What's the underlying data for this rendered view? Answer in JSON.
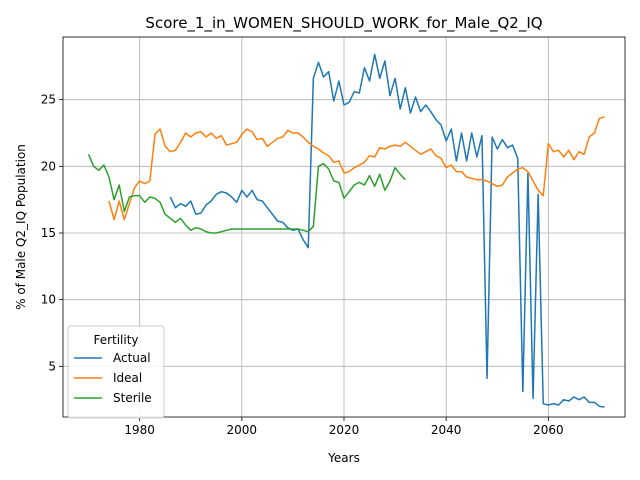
{
  "chart_data": {
    "type": "line",
    "title": "Score_1_in_WOMEN_SHOULD_WORK_for_Male_Q2_IQ",
    "xlabel": "Years",
    "ylabel": "% of Male Q2_IQ Population",
    "xlim": [
      1965,
      2075
    ],
    "ylim": [
      1.2,
      29.7
    ],
    "xticks": [
      1980,
      2000,
      2020,
      2040,
      2060
    ],
    "yticks": [
      5,
      10,
      15,
      20,
      25
    ],
    "grid": true,
    "legend": {
      "title": "Fertility",
      "location": "lower-left"
    },
    "series": [
      {
        "name": "Actual",
        "color": "#1f77b4",
        "points": [
          [
            1986,
            17.7
          ],
          [
            1987,
            16.9
          ],
          [
            1988,
            17.2
          ],
          [
            1989,
            17.0
          ],
          [
            1990,
            17.4
          ],
          [
            1991,
            16.4
          ],
          [
            1992,
            16.5
          ],
          [
            1993,
            17.1
          ],
          [
            1994,
            17.4
          ],
          [
            1995,
            17.9
          ],
          [
            1996,
            18.1
          ],
          [
            1997,
            18.0
          ],
          [
            1998,
            17.7
          ],
          [
            1999,
            17.3
          ],
          [
            2000,
            18.2
          ],
          [
            2001,
            17.7
          ],
          [
            2002,
            18.2
          ],
          [
            2003,
            17.5
          ],
          [
            2004,
            17.4
          ],
          [
            2005,
            16.9
          ],
          [
            2006,
            16.4
          ],
          [
            2007,
            15.9
          ],
          [
            2008,
            15.8
          ],
          [
            2009,
            15.4
          ],
          [
            2010,
            15.2
          ],
          [
            2011,
            15.3
          ],
          [
            2012,
            14.5
          ],
          [
            2013,
            13.9
          ],
          [
            2014,
            26.6
          ],
          [
            2015,
            27.8
          ],
          [
            2016,
            26.7
          ],
          [
            2017,
            27.1
          ],
          [
            2018,
            24.9
          ],
          [
            2019,
            26.4
          ],
          [
            2020,
            24.6
          ],
          [
            2021,
            24.8
          ],
          [
            2022,
            25.6
          ],
          [
            2023,
            25.5
          ],
          [
            2024,
            27.4
          ],
          [
            2025,
            26.4
          ],
          [
            2026,
            28.4
          ],
          [
            2027,
            26.6
          ],
          [
            2028,
            27.9
          ],
          [
            2029,
            25.3
          ],
          [
            2030,
            26.6
          ],
          [
            2031,
            24.3
          ],
          [
            2032,
            25.9
          ],
          [
            2033,
            24.0
          ],
          [
            2034,
            25.2
          ],
          [
            2035,
            24.1
          ],
          [
            2036,
            24.6
          ],
          [
            2037,
            24.1
          ],
          [
            2038,
            23.5
          ],
          [
            2039,
            23.1
          ],
          [
            2040,
            21.9
          ],
          [
            2041,
            22.8
          ],
          [
            2042,
            20.4
          ],
          [
            2043,
            22.5
          ],
          [
            2044,
            20.4
          ],
          [
            2045,
            22.5
          ],
          [
            2046,
            20.7
          ],
          [
            2047,
            22.3
          ],
          [
            2048,
            4.1
          ],
          [
            2049,
            22.2
          ],
          [
            2050,
            21.3
          ],
          [
            2051,
            22.0
          ],
          [
            2052,
            21.4
          ],
          [
            2053,
            21.6
          ],
          [
            2054,
            20.6
          ],
          [
            2055,
            3.1
          ],
          [
            2056,
            19.5
          ],
          [
            2057,
            2.6
          ],
          [
            2058,
            17.9
          ],
          [
            2059,
            2.2
          ],
          [
            2060,
            2.1
          ],
          [
            2061,
            2.2
          ],
          [
            2062,
            2.1
          ],
          [
            2063,
            2.5
          ],
          [
            2064,
            2.4
          ],
          [
            2065,
            2.7
          ],
          [
            2066,
            2.5
          ],
          [
            2067,
            2.7
          ],
          [
            2068,
            2.3
          ],
          [
            2069,
            2.3
          ],
          [
            2070,
            2.0
          ],
          [
            2071,
            1.95
          ]
        ]
      },
      {
        "name": "Ideal",
        "color": "#ff7f0e",
        "points": [
          [
            1974,
            17.4
          ],
          [
            1975,
            16.0
          ],
          [
            1976,
            17.4
          ],
          [
            1977,
            16.0
          ],
          [
            1978,
            17.2
          ],
          [
            1979,
            18.4
          ],
          [
            1980,
            18.9
          ],
          [
            1981,
            18.7
          ],
          [
            1982,
            18.9
          ],
          [
            1983,
            22.4
          ],
          [
            1984,
            22.8
          ],
          [
            1985,
            21.5
          ],
          [
            1986,
            21.1
          ],
          [
            1987,
            21.2
          ],
          [
            1988,
            21.8
          ],
          [
            1989,
            22.5
          ],
          [
            1990,
            22.2
          ],
          [
            1991,
            22.5
          ],
          [
            1992,
            22.6
          ],
          [
            1993,
            22.2
          ],
          [
            1994,
            22.5
          ],
          [
            1995,
            22.1
          ],
          [
            1996,
            22.3
          ],
          [
            1997,
            21.6
          ],
          [
            1998,
            21.7
          ],
          [
            1999,
            21.8
          ],
          [
            2000,
            22.4
          ],
          [
            2001,
            22.8
          ],
          [
            2002,
            22.6
          ],
          [
            2003,
            22.0
          ],
          [
            2004,
            22.1
          ],
          [
            2005,
            21.5
          ],
          [
            2006,
            21.8
          ],
          [
            2007,
            22.1
          ],
          [
            2008,
            22.2
          ],
          [
            2009,
            22.7
          ],
          [
            2010,
            22.5
          ],
          [
            2011,
            22.5
          ],
          [
            2012,
            22.2
          ],
          [
            2013,
            21.8
          ],
          [
            2014,
            21.5
          ],
          [
            2015,
            21.3
          ],
          [
            2016,
            21.0
          ],
          [
            2017,
            20.8
          ],
          [
            2018,
            20.3
          ],
          [
            2019,
            20.4
          ],
          [
            2020,
            19.5
          ],
          [
            2021,
            19.6
          ],
          [
            2022,
            19.9
          ],
          [
            2023,
            20.1
          ],
          [
            2024,
            20.3
          ],
          [
            2025,
            20.8
          ],
          [
            2026,
            20.7
          ],
          [
            2027,
            21.4
          ],
          [
            2028,
            21.3
          ],
          [
            2029,
            21.5
          ],
          [
            2030,
            21.6
          ],
          [
            2031,
            21.5
          ],
          [
            2032,
            21.8
          ],
          [
            2033,
            21.5
          ],
          [
            2034,
            21.2
          ],
          [
            2035,
            20.9
          ],
          [
            2036,
            21.1
          ],
          [
            2037,
            21.3
          ],
          [
            2038,
            20.8
          ],
          [
            2039,
            20.6
          ],
          [
            2040,
            19.9
          ],
          [
            2041,
            20.1
          ],
          [
            2042,
            19.6
          ],
          [
            2043,
            19.6
          ],
          [
            2044,
            19.2
          ],
          [
            2045,
            19.1
          ],
          [
            2046,
            19.0
          ],
          [
            2047,
            19.0
          ],
          [
            2048,
            18.9
          ],
          [
            2049,
            18.7
          ],
          [
            2050,
            18.5
          ],
          [
            2051,
            18.6
          ],
          [
            2052,
            19.2
          ],
          [
            2053,
            19.5
          ],
          [
            2054,
            19.8
          ],
          [
            2055,
            19.9
          ],
          [
            2056,
            19.6
          ],
          [
            2057,
            18.9
          ],
          [
            2058,
            18.2
          ],
          [
            2059,
            17.8
          ],
          [
            2060,
            21.7
          ],
          [
            2061,
            21.1
          ],
          [
            2062,
            21.2
          ],
          [
            2063,
            20.7
          ],
          [
            2064,
            21.2
          ],
          [
            2065,
            20.5
          ],
          [
            2066,
            21.1
          ],
          [
            2067,
            20.9
          ],
          [
            2068,
            22.2
          ],
          [
            2069,
            22.5
          ],
          [
            2070,
            23.6
          ],
          [
            2071,
            23.7
          ]
        ]
      },
      {
        "name": "Sterile",
        "color": "#2ca02c",
        "points": [
          [
            1970,
            20.9
          ],
          [
            1971,
            20.0
          ],
          [
            1972,
            19.7
          ],
          [
            1973,
            20.1
          ],
          [
            1974,
            19.2
          ],
          [
            1975,
            17.5
          ],
          [
            1976,
            18.6
          ],
          [
            1977,
            16.6
          ],
          [
            1978,
            17.7
          ],
          [
            1979,
            17.8
          ],
          [
            1980,
            17.8
          ],
          [
            1981,
            17.3
          ],
          [
            1982,
            17.7
          ],
          [
            1983,
            17.6
          ],
          [
            1984,
            17.3
          ],
          [
            1985,
            16.4
          ],
          [
            1986,
            16.1
          ],
          [
            1987,
            15.8
          ],
          [
            1988,
            16.1
          ],
          [
            1989,
            15.6
          ],
          [
            1990,
            15.2
          ],
          [
            1991,
            15.4
          ],
          [
            1992,
            15.3
          ],
          [
            1993,
            15.1
          ],
          [
            1994,
            15.0
          ],
          [
            1995,
            15.0
          ],
          [
            1996,
            15.1
          ],
          [
            1997,
            15.2
          ],
          [
            1998,
            15.3
          ],
          [
            2000,
            15.3
          ],
          [
            2005,
            15.3
          ],
          [
            2010,
            15.3
          ],
          [
            2011,
            15.3
          ],
          [
            2012,
            15.2
          ],
          [
            2013,
            15.1
          ],
          [
            2014,
            15.5
          ],
          [
            2015,
            20.0
          ],
          [
            2016,
            20.2
          ],
          [
            2017,
            19.8
          ],
          [
            2018,
            18.9
          ],
          [
            2019,
            18.8
          ],
          [
            2020,
            17.6
          ],
          [
            2021,
            18.1
          ],
          [
            2022,
            18.6
          ],
          [
            2023,
            18.8
          ],
          [
            2024,
            18.6
          ],
          [
            2025,
            19.3
          ],
          [
            2026,
            18.5
          ],
          [
            2027,
            19.4
          ],
          [
            2028,
            18.2
          ],
          [
            2029,
            18.9
          ],
          [
            2030,
            19.9
          ],
          [
            2031,
            19.4
          ],
          [
            2032,
            19.0
          ]
        ]
      }
    ]
  }
}
